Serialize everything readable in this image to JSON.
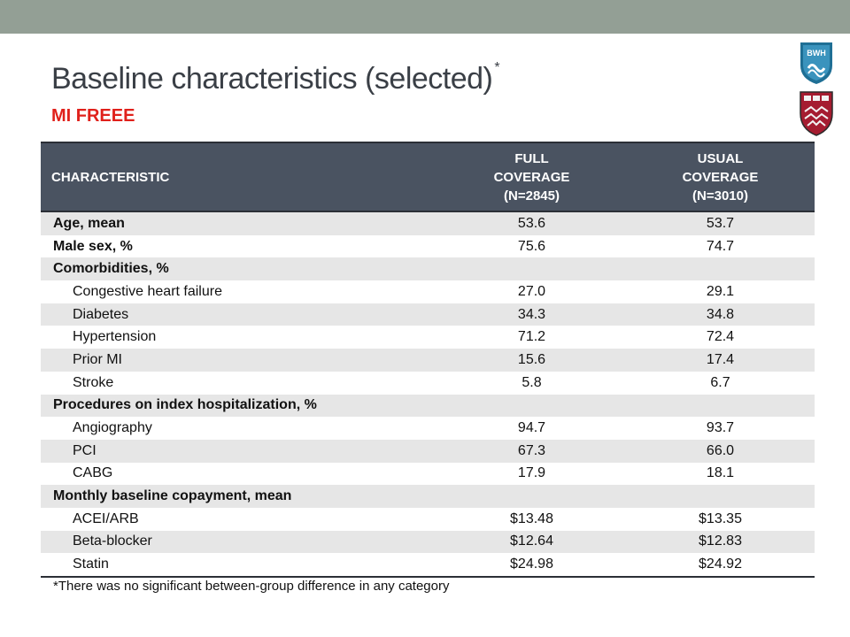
{
  "slide": {
    "title": "Baseline characteristics (selected)",
    "title_mark": "*",
    "subtitle": "MI FREEE",
    "footnote": "*There was no significant between-group difference in any category"
  },
  "logos": {
    "top": "BWH",
    "bottom": "Harvard shield (VE RI TAS)"
  },
  "table": {
    "headers": {
      "characteristic": "CHARACTERISTIC",
      "full": [
        "FULL",
        "COVERAGE",
        "(N=2845)"
      ],
      "usual": [
        "USUAL",
        "COVERAGE",
        "(N=3010)"
      ]
    },
    "rows": [
      {
        "label": "Age, mean",
        "full": "53.6",
        "usual": "53.7"
      },
      {
        "label": "Male sex, %",
        "full": "75.6",
        "usual": "74.7"
      },
      {
        "label": "Comorbidities, %",
        "full": "",
        "usual": ""
      },
      {
        "label": "Congestive heart failure",
        "full": "27.0",
        "usual": "29.1"
      },
      {
        "label": "Diabetes",
        "full": "34.3",
        "usual": "34.8"
      },
      {
        "label": "Hypertension",
        "full": "71.2",
        "usual": "72.4"
      },
      {
        "label": "Prior MI",
        "full": "15.6",
        "usual": "17.4"
      },
      {
        "label": "Stroke",
        "full": "5.8",
        "usual": "6.7"
      },
      {
        "label": "Procedures on index hospitalization, %",
        "full": "",
        "usual": ""
      },
      {
        "label": "Angiography",
        "full": "94.7",
        "usual": "93.7"
      },
      {
        "label": "PCI",
        "full": "67.3",
        "usual": "66.0"
      },
      {
        "label": "CABG",
        "full": "17.9",
        "usual": "18.1"
      },
      {
        "label": "Monthly baseline copayment, mean",
        "full": "",
        "usual": ""
      },
      {
        "label": "ACEI/ARB",
        "full": "$13.48",
        "usual": "$13.35"
      },
      {
        "label": "Beta-blocker",
        "full": "$12.64",
        "usual": "$12.83"
      },
      {
        "label": "Statin",
        "full": "$24.98",
        "usual": "$24.92"
      }
    ]
  },
  "colors": {
    "top_band": "#939f95",
    "header_bg": "#4a5361",
    "subtitle": "#e0211b",
    "stripe": "#e6e6e6"
  }
}
